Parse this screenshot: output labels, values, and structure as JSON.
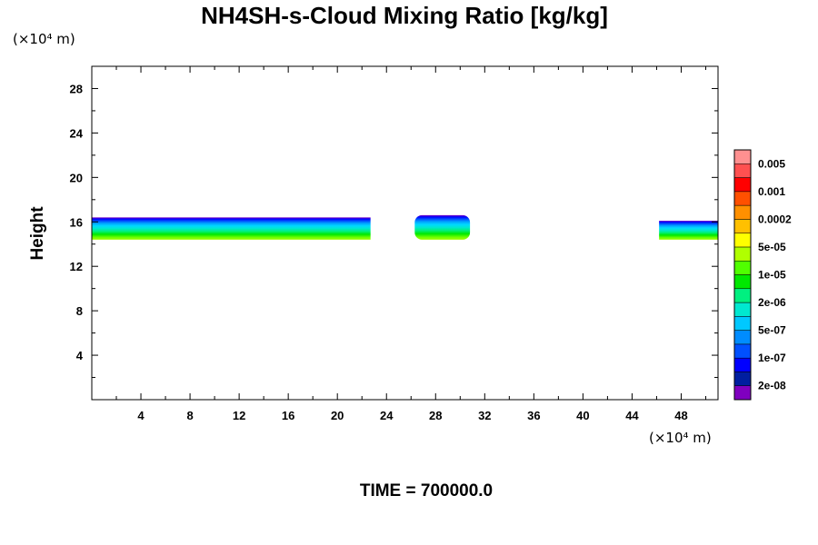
{
  "chart_data": {
    "type": "heatmap",
    "title": "NH4SH-s-Cloud Mixing Ratio [kg/kg]",
    "ylabel": "Height",
    "y_unit": "(×10⁴ m)",
    "x_unit": "(×10⁴ m)",
    "time_label": "TIME = 700000.0",
    "xlim": [
      0,
      51
    ],
    "ylim": [
      0,
      30
    ],
    "x_ticks": [
      4,
      8,
      12,
      16,
      20,
      24,
      28,
      32,
      36,
      40,
      44,
      48
    ],
    "y_ticks": [
      4,
      8,
      12,
      16,
      20,
      24,
      28
    ],
    "colorbar": {
      "levels": [
        "2e-08",
        "1e-07",
        "5e-07",
        "2e-06",
        "1e-05",
        "5e-05",
        "0.0002",
        "0.001",
        "0.005"
      ],
      "colors": [
        "#7f00bf",
        "#001ea0",
        "#0000ff",
        "#0050ff",
        "#008cff",
        "#00c8ff",
        "#00e8d0",
        "#00f080",
        "#00e800",
        "#50ff00",
        "#b0ff00",
        "#ffff00",
        "#ffc000",
        "#ff9000",
        "#ff5000",
        "#ff0000",
        "#ff5050",
        "#ff9090"
      ]
    },
    "cloud_regions": [
      {
        "name": "",
        "x_start": 0.0,
        "x_end": 22.7,
        "y_bottom": 14.4,
        "y_top": 16.4
      },
      {
        "name": "",
        "x_start": 26.3,
        "x_end": 30.8,
        "y_bottom": 14.4,
        "y_top": 16.6
      },
      {
        "name": "",
        "x_start": 46.2,
        "x_end": 51.0,
        "y_bottom": 14.4,
        "y_top": 16.1
      }
    ]
  }
}
